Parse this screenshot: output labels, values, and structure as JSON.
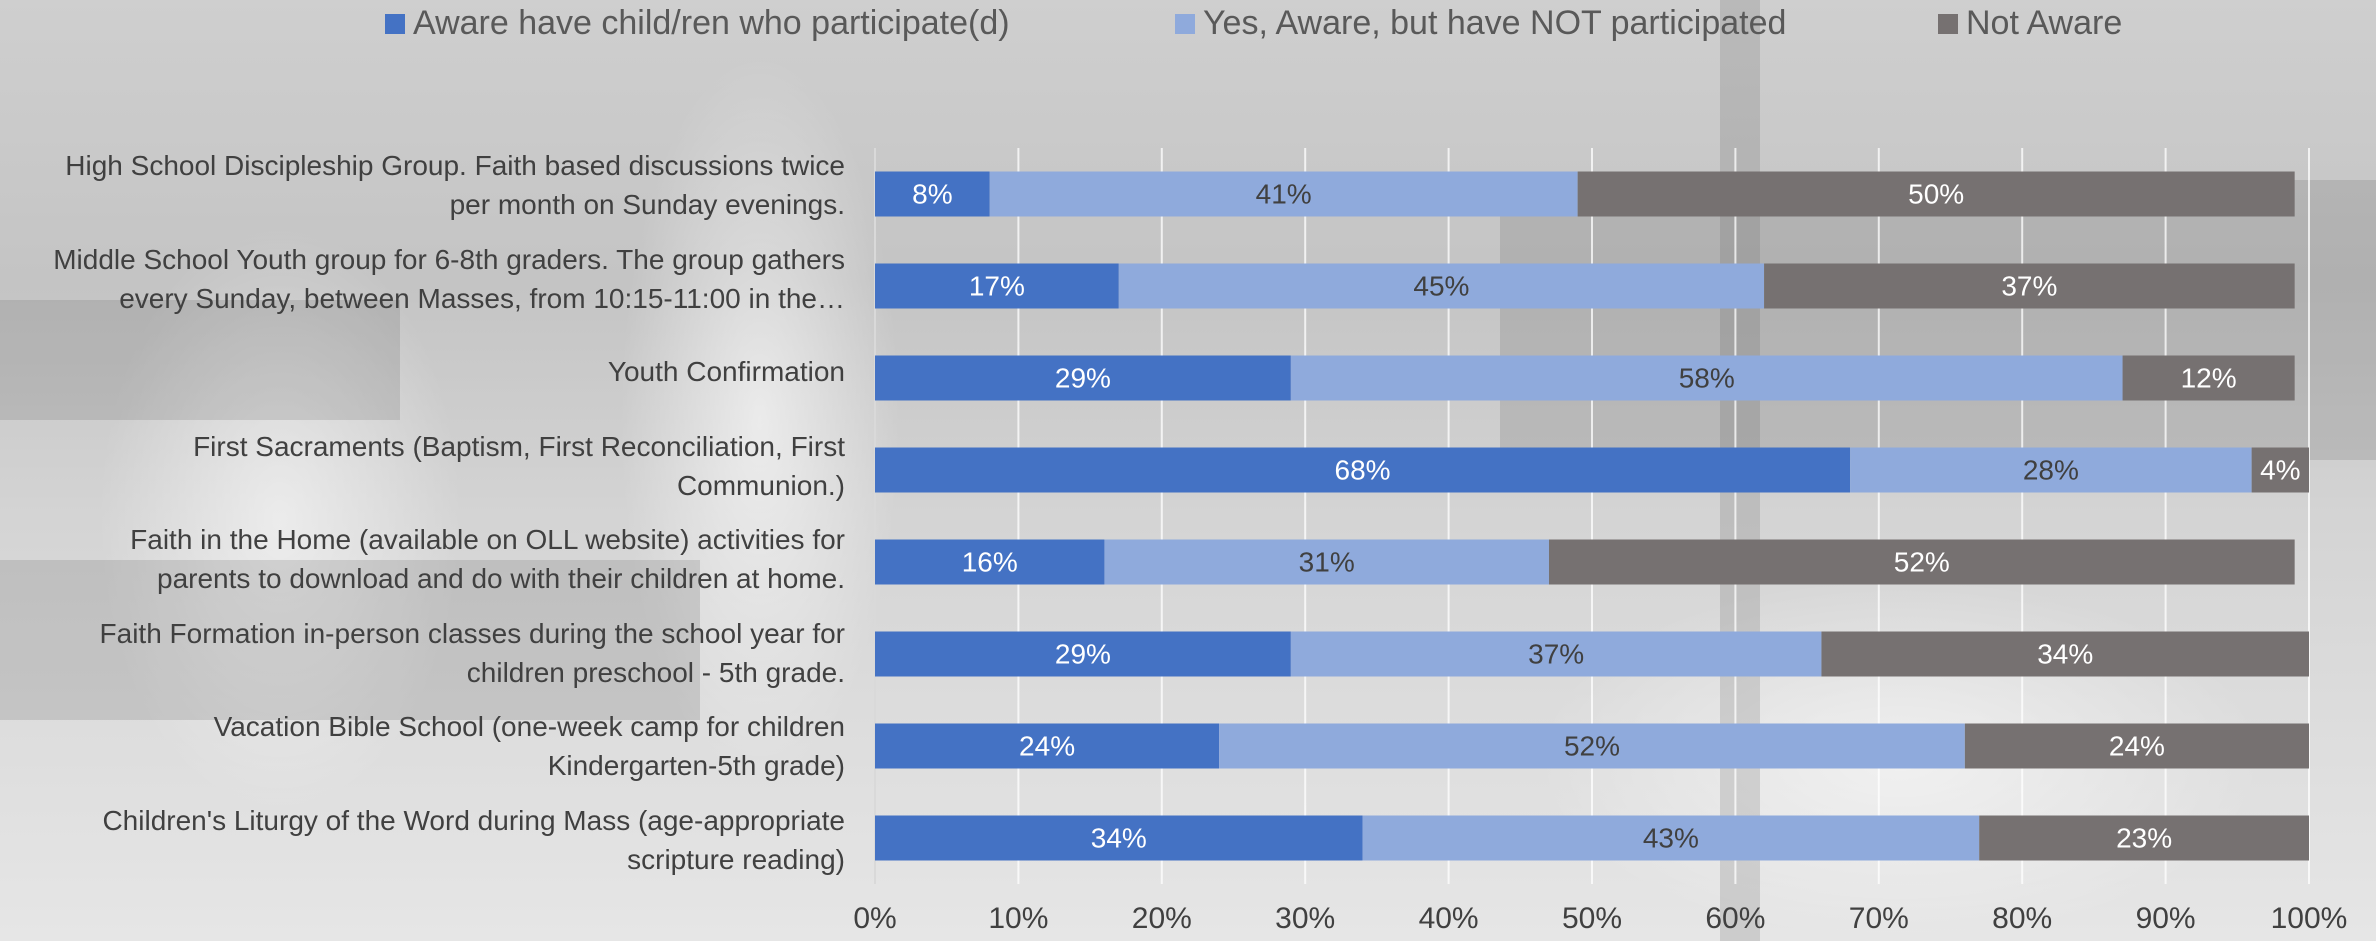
{
  "chart_data": {
    "type": "bar",
    "orientation": "horizontal",
    "stacked": true,
    "categories": [
      "High School Discipleship Group. Faith based discussions twice per month on Sunday evenings.",
      "Middle School Youth group for 6-8th graders. The group gathers every Sunday, between Masses, from 10:15-11:00 in the…",
      "Youth Confirmation",
      "First Sacraments (Baptism, First Reconciliation, First Communion.)",
      "Faith in the Home (available on OLL website) activities for parents to download and do with their children at home.",
      "Faith Formation in-person classes during the school year for children preschool - 5th grade.",
      "Vacation Bible School (one-week camp for children Kindergarten-5th grade)",
      "Children's Liturgy of the Word during Mass (age-appropriate scripture reading)"
    ],
    "category_label_lines": [
      [
        "High School Discipleship Group. Faith based discussions twice",
        "per month on Sunday evenings."
      ],
      [
        "Middle School Youth group for 6-8th graders. The group gathers",
        "every Sunday, between Masses, from 10:15-11:00 in the…"
      ],
      [
        "Youth Confirmation"
      ],
      [
        "First Sacraments (Baptism, First Reconciliation, First",
        "Communion.)"
      ],
      [
        "Faith in the Home (available on OLL website) activities for",
        "parents to download and do with their children at home."
      ],
      [
        "Faith Formation in-person classes during the school year for",
        "children preschool - 5th grade."
      ],
      [
        "Vacation Bible School (one-week camp for children",
        "Kindergarten-5th grade)"
      ],
      [
        "Children's Liturgy of the Word during Mass (age-appropriate",
        "scripture reading)"
      ]
    ],
    "series": [
      {
        "name": "Aware have child/ren who participate(d)",
        "color": "#4472c4",
        "label_color": "#ffffff",
        "values": [
          8,
          17,
          29,
          68,
          16,
          29,
          24,
          34
        ],
        "labels": [
          "8%",
          "17%",
          "29%",
          "68%",
          "16%",
          "29%",
          "24%",
          "34%"
        ]
      },
      {
        "name": "Yes, Aware, but have NOT participated",
        "color": "#8faadc",
        "label_color": "#404040",
        "values": [
          41,
          45,
          58,
          28,
          31,
          37,
          52,
          43
        ],
        "labels": [
          "41%",
          "45%",
          "58%",
          "28%",
          "31%",
          "37%",
          "52%",
          "43%"
        ]
      },
      {
        "name": "Not Aware",
        "color": "#767171",
        "label_color": "#ffffff",
        "values": [
          50,
          37,
          12,
          4,
          52,
          34,
          24,
          23
        ],
        "labels": [
          "50%",
          "37%",
          "12%",
          "4%",
          "52%",
          "34%",
          "24%",
          "23%"
        ]
      }
    ],
    "x_ticks": [
      "0%",
      "10%",
      "20%",
      "30%",
      "40%",
      "50%",
      "60%",
      "70%",
      "80%",
      "90%",
      "100%"
    ],
    "xlim": [
      0,
      100
    ],
    "grid": true,
    "legend_position": "top",
    "background": "grayscale photo of a church parish center"
  }
}
